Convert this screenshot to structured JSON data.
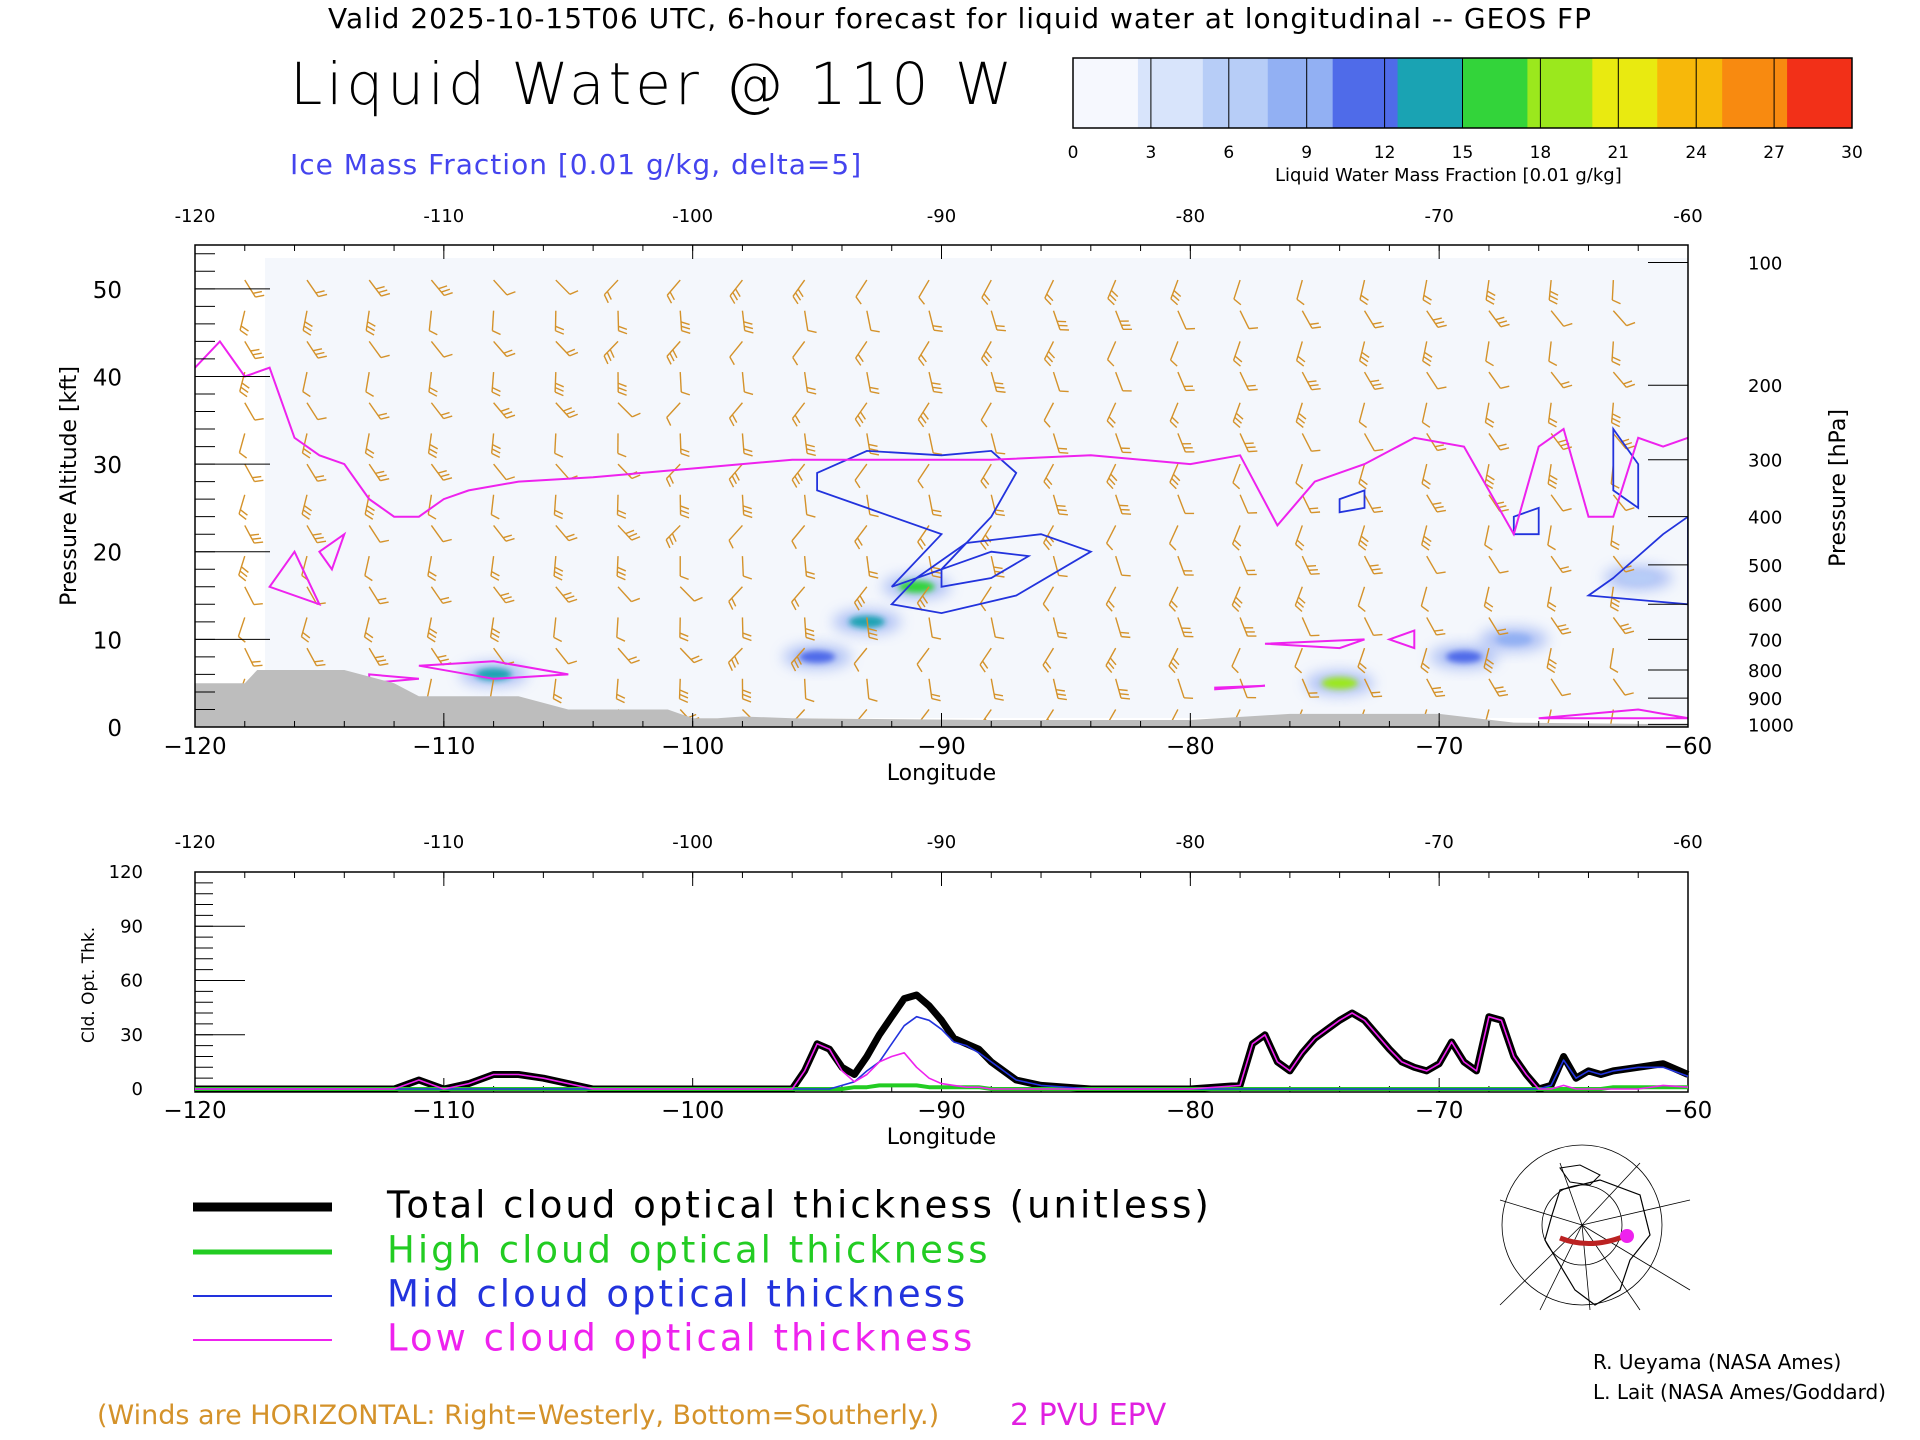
{
  "header": {
    "valid_line": "Valid 2025-10-15T06 UTC, 6-hour forecast for liquid water at longitudinal -- GEOS FP",
    "title": "Liquid Water @ 110 W",
    "ice_caption": "Ice Mass Fraction [0.01 g/kg, delta=5]"
  },
  "colorbar": {
    "title": "Liquid Water Mass Fraction [0.01 g/kg]",
    "ticks": [
      "0",
      "3",
      "6",
      "9",
      "12",
      "15",
      "18",
      "21",
      "24",
      "27",
      "30"
    ],
    "colors": [
      "#f6f8fe",
      "#d8e4fb",
      "#b7cdf7",
      "#92b0f3",
      "#4f6be9",
      "#1aa3b3",
      "#33d43a",
      "#9be81d",
      "#e9ea10",
      "#f7b80a",
      "#f88a10",
      "#f23018"
    ]
  },
  "cross_section": {
    "top_lon_labels": [
      "-120",
      "-110",
      "-100",
      "-90",
      "-80",
      "-70",
      "-60"
    ],
    "bottom_lon_labels": [
      "−120",
      "−110",
      "−100",
      "−90",
      "−80",
      "−70",
      "−60"
    ],
    "xlabel": "Longitude",
    "ylabel_left": "Pressure Altitude [kft]",
    "ylabel_right": "Pressure [hPa]",
    "alt_ticks": [
      "0",
      "10",
      "20",
      "30",
      "40",
      "50"
    ],
    "pressure_ticks": [
      "100",
      "200",
      "300",
      "400",
      "500",
      "600",
      "700",
      "800",
      "900",
      "1000"
    ]
  },
  "optical": {
    "top_lon_labels": [
      "-120",
      "-110",
      "-100",
      "-90",
      "-80",
      "-70",
      "-60"
    ],
    "bottom_lon_labels": [
      "−120",
      "−110",
      "−100",
      "−90",
      "−80",
      "−70",
      "−60"
    ],
    "xlabel": "Longitude",
    "ylabel": "Cld. Opt. Thk.",
    "y_ticks": [
      "0",
      "30",
      "60",
      "90",
      "120"
    ]
  },
  "legend": {
    "total": "Total cloud optical thickness (unitless)",
    "high": "High cloud optical thickness",
    "mid": "Mid cloud optical thickness",
    "low": "Low cloud optical thickness"
  },
  "footer": {
    "winds_note": "(Winds are HORIZONTAL: Right=Westerly, Bottom=Southerly.)",
    "epv_label": "2 PVU EPV",
    "credit1": "R. Ueyama (NASA Ames)",
    "credit2": "L. Lait (NASA Ames/Goddard)"
  },
  "colors": {
    "total": "#000000",
    "high": "#22cc22",
    "mid": "#2233dd",
    "low": "#ee22ee",
    "wind": "#d4922a",
    "terrain": "#bdbdbd",
    "epv": "#ee22ee",
    "ice": "#2233dd"
  },
  "chart_data": [
    {
      "type": "heatmap",
      "title": "Liquid Water @ 110 W",
      "xlabel": "Longitude",
      "ylabel": "Pressure Altitude [kft]",
      "xlim": [
        -120,
        -60
      ],
      "ylim": [
        0,
        55
      ],
      "liquid_water_blobs": [
        {
          "lon": -108,
          "alt": 6,
          "value": 14
        },
        {
          "lon": -95,
          "alt": 8,
          "value": 10
        },
        {
          "lon": -93,
          "alt": 12,
          "value": 13
        },
        {
          "lon": -91,
          "alt": 16,
          "value": 16
        },
        {
          "lon": -74,
          "alt": 5,
          "value": 18
        },
        {
          "lon": -69,
          "alt": 8,
          "value": 12
        },
        {
          "lon": -67,
          "alt": 10,
          "value": 8
        },
        {
          "lon": -62,
          "alt": 17,
          "value": 6
        }
      ],
      "epv_2pvu_kft": {
        "lon": [
          -120,
          -119,
          -118,
          -117,
          -116,
          -115,
          -114,
          -113,
          -112,
          -111,
          -110,
          -109,
          -107,
          -104,
          -100,
          -96,
          -92,
          -88,
          -84,
          -80,
          -78,
          -76.5,
          -75,
          -73,
          -71,
          -69,
          -67,
          -66,
          -65,
          -64,
          -63,
          -62,
          -61,
          -60
        ],
        "alt": [
          41,
          44,
          40,
          41,
          33,
          31,
          30,
          26,
          24,
          24,
          26,
          27,
          28,
          28.5,
          29.5,
          30.5,
          30.5,
          30.5,
          31,
          30,
          31,
          23,
          28,
          30,
          33,
          32,
          22,
          32,
          34,
          24,
          24,
          33,
          32,
          33
        ]
      }
    },
    {
      "type": "line",
      "title": "",
      "xlabel": "Longitude",
      "ylabel": "Cld. Opt. Thk.",
      "xlim": [
        -120,
        -60
      ],
      "ylim": [
        0,
        120
      ],
      "x": [
        -120,
        -112,
        -111,
        -110,
        -109,
        -108,
        -107,
        -106,
        -104,
        -100,
        -96,
        -95.5,
        -95,
        -94.5,
        -94,
        -93.5,
        -93,
        -92.5,
        -92,
        -91.5,
        -91,
        -90.5,
        -90,
        -89.5,
        -89,
        -88.5,
        -88,
        -87,
        -86,
        -84,
        -80,
        -78,
        -77.5,
        -77,
        -76.5,
        -76,
        -75.5,
        -75,
        -74.5,
        -74,
        -73.5,
        -73,
        -72.5,
        -72,
        -71.5,
        -71,
        -70.5,
        -70,
        -69.5,
        -69,
        -68.5,
        -68,
        -67.5,
        -67,
        -66.5,
        -66,
        -65.5,
        -65,
        -64.5,
        -64,
        -63.5,
        -63,
        -62,
        -61,
        -60
      ],
      "series": [
        {
          "name": "Total cloud optical thickness (unitless)",
          "values": [
            0,
            0,
            5,
            0,
            3,
            8,
            8,
            6,
            0,
            0,
            0,
            10,
            25,
            22,
            12,
            8,
            18,
            30,
            40,
            50,
            52,
            46,
            38,
            28,
            25,
            22,
            15,
            5,
            2,
            0,
            0,
            2,
            25,
            30,
            15,
            10,
            20,
            28,
            33,
            38,
            42,
            38,
            30,
            22,
            15,
            12,
            10,
            14,
            26,
            15,
            10,
            40,
            38,
            18,
            8,
            0,
            2,
            18,
            6,
            10,
            8,
            10,
            12,
            14,
            8
          ]
        },
        {
          "name": "High cloud optical thickness",
          "values": [
            0,
            0,
            0,
            0,
            0,
            0,
            0,
            0,
            0,
            0,
            0,
            0,
            0,
            0,
            0,
            1,
            1,
            2,
            2,
            2,
            2,
            1,
            1,
            1,
            1,
            1,
            0,
            0,
            0,
            0,
            0,
            0,
            0,
            0,
            0,
            0,
            0,
            0,
            0,
            0,
            0,
            0,
            0,
            0,
            0,
            0,
            0,
            0,
            0,
            0,
            0,
            0,
            0,
            0,
            0,
            0,
            0,
            0,
            0,
            0,
            0,
            1,
            1,
            1,
            1
          ]
        },
        {
          "name": "Mid cloud optical thickness",
          "values": [
            0,
            0,
            0,
            0,
            0,
            0,
            0,
            0,
            0,
            0,
            0,
            0,
            0,
            0,
            2,
            4,
            10,
            15,
            25,
            35,
            40,
            38,
            33,
            26,
            24,
            20,
            15,
            5,
            2,
            0,
            0,
            0,
            0,
            0,
            0,
            0,
            0,
            0,
            0,
            0,
            0,
            0,
            0,
            0,
            0,
            0,
            0,
            0,
            0,
            0,
            0,
            0,
            0,
            0,
            0,
            0,
            2,
            16,
            6,
            10,
            8,
            10,
            12,
            12,
            7
          ]
        },
        {
          "name": "Low cloud optical thickness",
          "values": [
            0,
            0,
            5,
            0,
            3,
            8,
            8,
            6,
            0,
            0,
            0,
            10,
            25,
            22,
            10,
            4,
            8,
            15,
            18,
            20,
            12,
            6,
            3,
            2,
            1,
            1,
            0,
            0,
            0,
            0,
            0,
            2,
            25,
            30,
            15,
            10,
            20,
            28,
            33,
            38,
            42,
            38,
            30,
            22,
            15,
            12,
            10,
            14,
            26,
            15,
            10,
            40,
            38,
            18,
            8,
            0,
            0,
            2,
            0,
            0,
            0,
            0,
            0,
            2,
            1
          ]
        }
      ]
    }
  ]
}
